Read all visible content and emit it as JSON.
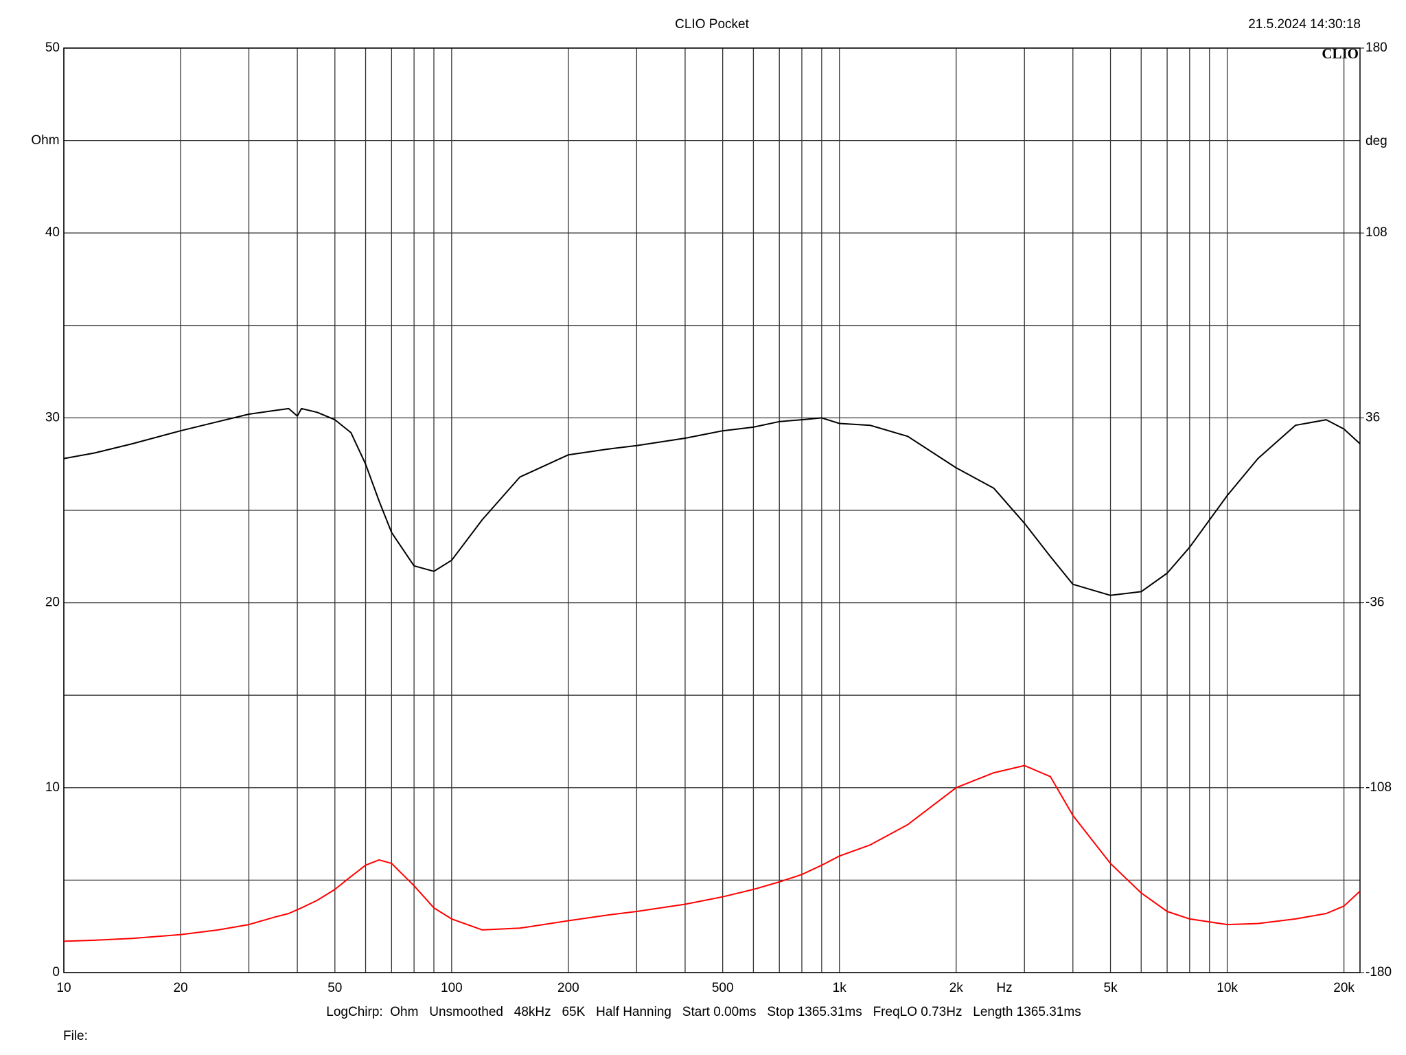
{
  "chart_data": {
    "type": "line",
    "title": "CLIO Pocket",
    "timestamp": "21.5.2024 14:30:18",
    "logo": "CLIO",
    "y_label": "Ohm",
    "y2_label": "deg",
    "x_label": "Hz",
    "footer": "LogChirp:  Ohm   Unsmoothed   48kHz   65K   Half Hanning   Start 0.00ms   Stop 1365.31ms   FreqLO 0.73Hz   Length 1365.31ms",
    "file_label": "File:",
    "x_log": true,
    "grid": true,
    "xlim": [
      10,
      22000
    ],
    "xticks": [
      10,
      20,
      50,
      100,
      200,
      500,
      {
        "value": 1000,
        "label": "1k"
      },
      {
        "value": 2000,
        "label": "2k"
      },
      {
        "value": 5000,
        "label": "5k"
      },
      {
        "value": 10000,
        "label": "10k"
      },
      {
        "value": 20000,
        "label": "20k"
      }
    ],
    "xgrid": [
      30,
      40,
      60,
      70,
      80,
      90,
      300,
      400,
      600,
      700,
      800,
      900,
      3000,
      4000,
      6000,
      7000,
      8000,
      9000
    ],
    "ylim": [
      0,
      50
    ],
    "yticks": [
      0,
      10,
      20,
      30,
      40,
      50
    ],
    "ygrid": [
      5,
      15,
      25,
      35,
      45
    ],
    "y2lim": [
      -180,
      180
    ],
    "y2ticks": [
      -180,
      -108,
      -36,
      36,
      108,
      180
    ],
    "x": [
      10,
      12,
      15,
      20,
      25,
      30,
      35,
      38,
      40,
      41,
      45,
      50,
      55,
      60,
      65,
      70,
      80,
      90,
      100,
      120,
      150,
      200,
      250,
      300,
      400,
      500,
      600,
      700,
      800,
      900,
      1000,
      1200,
      1500,
      2000,
      2500,
      3000,
      3500,
      4000,
      5000,
      6000,
      7000,
      8000,
      10000,
      12000,
      15000,
      18000,
      20000,
      22000
    ],
    "series": [
      {
        "color": "#000000",
        "values": [
          27.8,
          28.1,
          28.6,
          29.3,
          29.8,
          30.2,
          30.4,
          30.5,
          30.1,
          30.5,
          30.3,
          29.9,
          29.2,
          27.5,
          25.5,
          23.8,
          22.0,
          21.7,
          22.3,
          24.5,
          26.8,
          28.0,
          28.3,
          28.5,
          28.9,
          29.3,
          29.5,
          29.8,
          29.9,
          30.0,
          29.7,
          29.6,
          29.0,
          27.3,
          26.2,
          24.3,
          22.5,
          21.0,
          20.4,
          20.6,
          21.6,
          23.0,
          25.8,
          27.8,
          29.6,
          29.9,
          29.4,
          28.6
        ]
      },
      {
        "color": "#ff0000",
        "axis": "y2",
        "values": [
          -167.8,
          -167.4,
          -166.7,
          -165.2,
          -163.4,
          -161.3,
          -158.4,
          -157.0,
          -155.5,
          -154.8,
          -151.9,
          -147.6,
          -142.6,
          -138.2,
          -136.1,
          -137.5,
          -146.2,
          -154.8,
          -159.1,
          -163.4,
          -162.7,
          -159.8,
          -157.7,
          -156.2,
          -153.4,
          -150.5,
          -147.6,
          -144.7,
          -141.8,
          -138.2,
          -134.6,
          -130.3,
          -122.4,
          -108,
          -102.2,
          -99.4,
          -103.7,
          -118.8,
          -137.5,
          -149,
          -156.2,
          -159.1,
          -161.3,
          -160.9,
          -159.1,
          -157,
          -154.1,
          -148.3
        ]
      }
    ]
  }
}
